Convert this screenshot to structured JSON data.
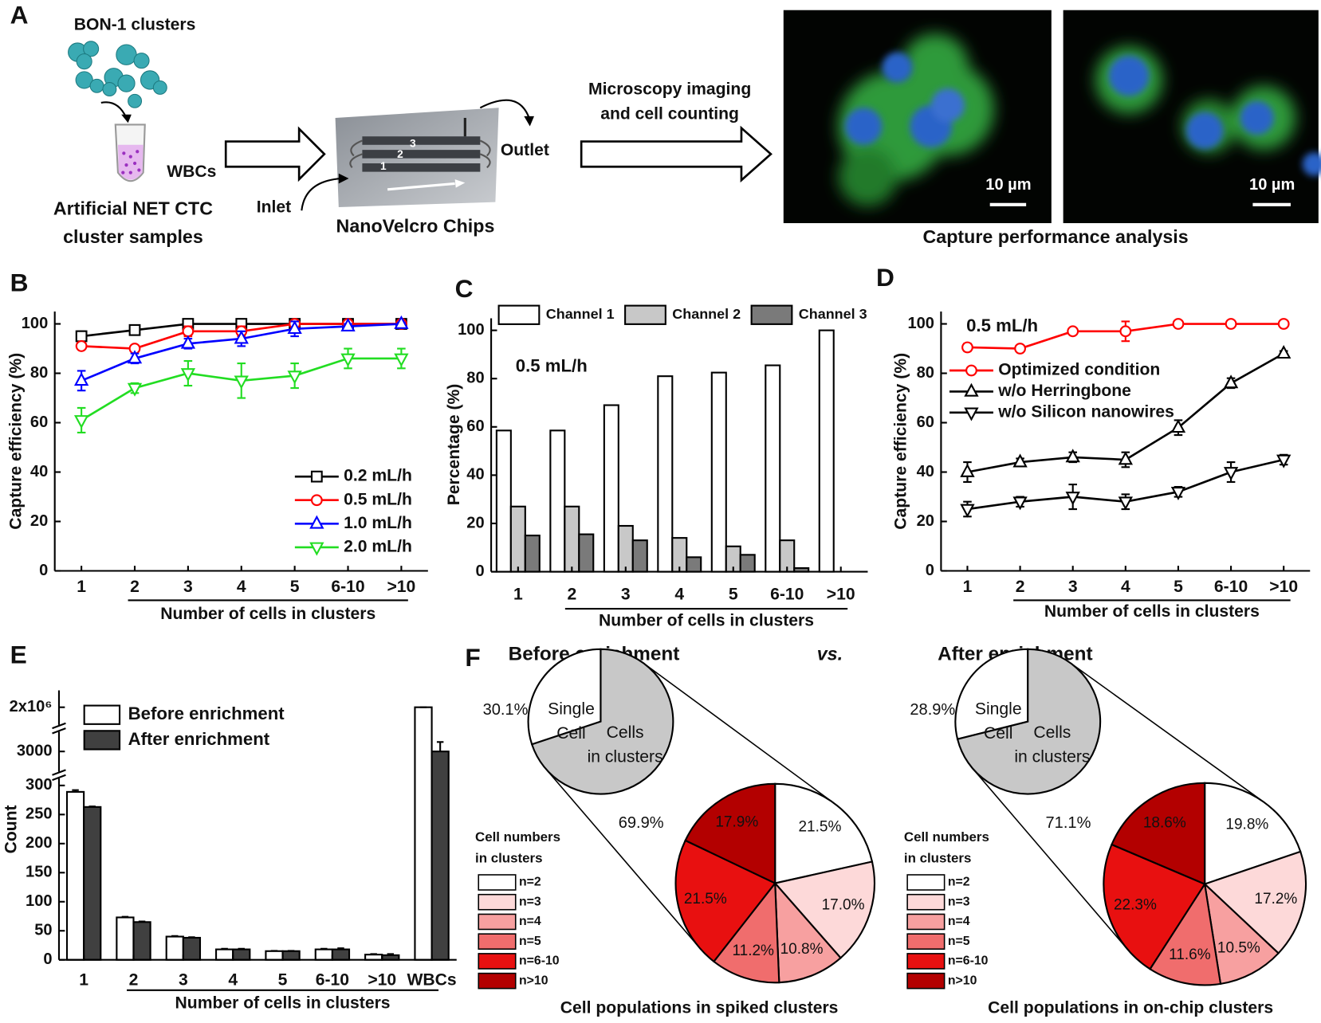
{
  "panel_a": {
    "panel": "A",
    "cluster_label": "BON-1 clusters",
    "tube_label": "WBCs",
    "sample_label": [
      "Artificial NET CTC",
      "cluster samples"
    ],
    "inlet": "Inlet",
    "outlet": "Outlet",
    "chip_label": "NanoVelcro Chips",
    "channel_numbers": [
      "1",
      "2",
      "3"
    ],
    "imaging_label": [
      "Microscopy imaging",
      "and cell counting"
    ],
    "scale_bars": [
      "10 µm",
      "10 µm"
    ],
    "analysis_label": "Capture performance analysis"
  },
  "chart_data": [
    {
      "type": "line",
      "panel": "B",
      "x_label": "Number of cells in clusters",
      "y_label": "Capture efficiency (%)",
      "categories": [
        "1",
        "2",
        "3",
        "4",
        "5",
        "6-10",
        ">10"
      ],
      "ylim": [
        0,
        105
      ],
      "yticks": [
        0,
        20,
        40,
        60,
        80,
        100
      ],
      "legend": "lower right",
      "series": [
        {
          "name": "0.2 mL/h",
          "color": "#000000",
          "marker": "square",
          "values": [
            95,
            97.5,
            100,
            100,
            100,
            100,
            100
          ],
          "errors": [
            2,
            2,
            0.5,
            0.5,
            0.5,
            0.5,
            0.5
          ]
        },
        {
          "name": "0.5 mL/h",
          "color": "#ff0000",
          "marker": "circle",
          "values": [
            91,
            90,
            97,
            97,
            100,
            100,
            100
          ],
          "errors": [
            1,
            1,
            2,
            2,
            0.5,
            0.5,
            0.5
          ]
        },
        {
          "name": "1.0 mL/h",
          "color": "#0000ff",
          "marker": "triangle-up",
          "values": [
            77,
            86,
            92,
            94,
            98,
            99,
            100
          ],
          "errors": [
            4,
            2,
            2,
            3,
            3,
            1,
            0.5
          ]
        },
        {
          "name": "2.0 mL/h",
          "color": "#22dd22",
          "marker": "triangle-down",
          "values": [
            61,
            74,
            80,
            77,
            79,
            86,
            86
          ],
          "errors": [
            5,
            2,
            5,
            7,
            5,
            4,
            4
          ]
        }
      ]
    },
    {
      "type": "bar",
      "panel": "C",
      "x_label": "Number of cells in clusters",
      "y_label": "Percentage (%)",
      "annotation": "0.5 mL/h",
      "categories": [
        "1",
        "2",
        "3",
        "4",
        "5",
        "6-10",
        ">10"
      ],
      "ylim": [
        0,
        105
      ],
      "yticks": [
        0,
        20,
        40,
        60,
        80,
        100
      ],
      "legend": "top",
      "series": [
        {
          "name": "Channel 1",
          "color": "#ffffff",
          "values": [
            58.5,
            58.5,
            69,
            81,
            82.5,
            85.5,
            100
          ]
        },
        {
          "name": "Channel 2",
          "color": "#c8c8c8",
          "values": [
            27,
            27,
            19,
            14,
            10.5,
            13,
            0
          ]
        },
        {
          "name": "Channel 3",
          "color": "#7a7a7a",
          "values": [
            15,
            15.5,
            13,
            6,
            7,
            1.5,
            0
          ]
        }
      ]
    },
    {
      "type": "line",
      "panel": "D",
      "x_label": "Number of cells in clusters",
      "y_label": "Capture efficiency (%)",
      "annotation": "0.5 mL/h",
      "categories": [
        "1",
        "2",
        "3",
        "4",
        "5",
        "6-10",
        ">10"
      ],
      "ylim": [
        0,
        105
      ],
      "yticks": [
        0,
        20,
        40,
        60,
        80,
        100
      ],
      "legend": "upper left",
      "series": [
        {
          "name": "Optimized condition",
          "color": "#ff0000",
          "marker": "circle",
          "values": [
            90.5,
            90,
            97,
            97,
            100,
            100,
            100
          ],
          "errors": [
            1.5,
            1,
            1,
            4,
            0.5,
            0.5,
            0.5
          ]
        },
        {
          "name": "w/o Herringbone",
          "color": "#000000",
          "marker": "triangle-up",
          "values": [
            40,
            44,
            46,
            45,
            58,
            76,
            88
          ],
          "errors": [
            4,
            1.5,
            2,
            3,
            3,
            2,
            1
          ]
        },
        {
          "name": "w/o Silicon nanowires",
          "color": "#000000",
          "marker": "triangle-down",
          "values": [
            25,
            28,
            30,
            28,
            32,
            40,
            45
          ],
          "errors": [
            3,
            2,
            5,
            3,
            2,
            4,
            2
          ]
        }
      ]
    },
    {
      "type": "bar",
      "panel": "E",
      "x_label": "Number of cells in clusters",
      "y_label": "Count",
      "categories": [
        "1",
        "2",
        "3",
        "4",
        "5",
        "6-10",
        ">10",
        "WBCs"
      ],
      "ylim_segments": [
        [
          0,
          310
        ],
        [
          2800,
          3200
        ],
        [
          1900000,
          2100000
        ]
      ],
      "yticks": [
        0,
        50,
        100,
        150,
        200,
        250,
        300,
        3000,
        {
          "value": 2000000,
          "label": "2x10⁶"
        }
      ],
      "legend": "upper left",
      "series": [
        {
          "name": "Before enrichment",
          "color": "#ffffff",
          "values": [
            289,
            73,
            40,
            18,
            15,
            18,
            9,
            2000000
          ],
          "errors": [
            3,
            1,
            1,
            1,
            0.5,
            1,
            1,
            0
          ]
        },
        {
          "name": "After enrichment",
          "color": "#404040",
          "values": [
            263,
            65,
            38,
            18,
            15,
            18,
            8,
            3000
          ],
          "errors": [
            1,
            1,
            1,
            1,
            0.5,
            2,
            2,
            100
          ]
        }
      ]
    },
    {
      "type": "pie",
      "panel": "F",
      "separator": "vs.",
      "legend_title": [
        "Cell numbers",
        "in clusters"
      ],
      "categories": [
        "n=2",
        "n=3",
        "n=4",
        "n=5",
        "n=6-10",
        "n>10"
      ],
      "colors": [
        "#ffffff",
        "#fdd9d9",
        "#f7a0a0",
        "#f06d6d",
        "#e81010",
        "#b30000"
      ],
      "overview_labels": [
        [
          "Single",
          "Cell"
        ],
        [
          "Cells",
          "in clusters"
        ]
      ],
      "overview_colors": [
        "#ffffff",
        "#c8c8c8"
      ],
      "pies": [
        {
          "title": "Before enrichment",
          "caption": "Cell populations in spiked clusters",
          "overview_values": [
            30.1,
            69.9
          ],
          "overview_value_labels": [
            "30.1%",
            "69.9%"
          ],
          "values": [
            21.5,
            17.0,
            10.8,
            11.2,
            21.5,
            17.9
          ],
          "value_labels": [
            "21.5%",
            "17.0%",
            "10.8%",
            "11.2%",
            "21.5%",
            "17.9%"
          ]
        },
        {
          "title": "After enrichment",
          "caption": "Cell populations in on-chip clusters",
          "overview_values": [
            28.9,
            71.1
          ],
          "overview_value_labels": [
            "28.9%",
            "71.1%"
          ],
          "values": [
            19.8,
            17.2,
            10.5,
            11.6,
            22.3,
            18.6
          ],
          "value_labels": [
            "19.8%",
            "17.2%",
            "10.5%",
            "11.6%",
            "22.3%",
            "18.6%"
          ]
        }
      ]
    }
  ]
}
